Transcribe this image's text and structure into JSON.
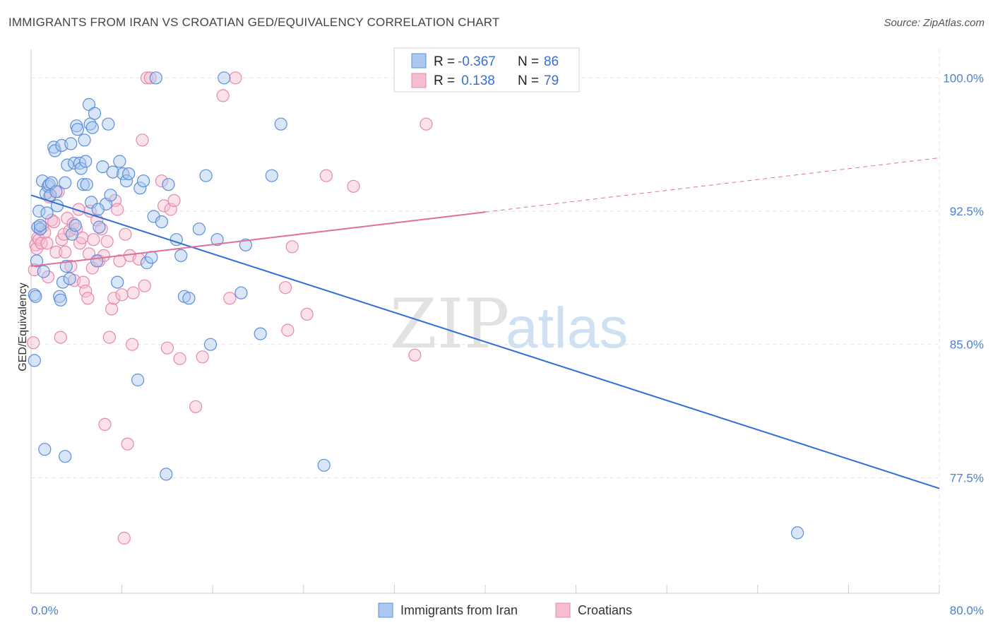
{
  "title": "IMMIGRANTS FROM IRAN VS CROATIAN GED/EQUIVALENCY CORRELATION CHART",
  "source": "Source: ZipAtlas.com",
  "watermark": {
    "part1": "ZIP",
    "part2": "atlas"
  },
  "legend": {
    "rows": [
      {
        "r_label": "R = ",
        "r_value": "-0.367",
        "n_label": "N = ",
        "n_value": "86"
      },
      {
        "r_label": "R = ",
        "r_value": " 0.138",
        "n_label": "N = ",
        "n_value": "79"
      }
    ]
  },
  "colors": {
    "blue_fill": "#aac8f0",
    "blue_stroke": "#5b8fd8",
    "blue_line": "#2f6fd6",
    "pink_fill": "#f6bcd0",
    "pink_stroke": "#e58aaa",
    "pink_line": "#e0709a",
    "grid": "#e3e3e3",
    "tick_text": "#4a7fd4"
  },
  "chart_data": {
    "type": "scatter",
    "title": "IMMIGRANTS FROM IRAN VS CROATIAN GED/EQUIVALENCY CORRELATION CHART",
    "xlabel": "",
    "ylabel": "GED/Equivalency",
    "xlim": [
      0,
      80
    ],
    "ylim": [
      71.0,
      101.6
    ],
    "x_tick_labels": [
      {
        "value": 0,
        "label": "0.0%"
      },
      {
        "value": 80,
        "label": "80.0%"
      }
    ],
    "x_minor_ticks": [
      8,
      16,
      24,
      32,
      40,
      48,
      56,
      64,
      72,
      80
    ],
    "y_ticks": [
      {
        "value": 100.0,
        "label": "100.0%"
      },
      {
        "value": 92.5,
        "label": "92.5%"
      },
      {
        "value": 85.0,
        "label": "85.0%"
      },
      {
        "value": 77.5,
        "label": "77.5%"
      }
    ],
    "grid": true,
    "legend_position": "top-center",
    "series": [
      {
        "name": "Immigrants from Iran",
        "R": -0.367,
        "N": 86,
        "trend": {
          "x0": 0,
          "y0": 93.4,
          "x1": 80,
          "y1": 76.9,
          "dashed_from": null
        },
        "points": [
          [
            0.3,
            87.8
          ],
          [
            0.3,
            84.1
          ],
          [
            0.5,
            89.7
          ],
          [
            0.6,
            91.6
          ],
          [
            0.7,
            92.5
          ],
          [
            0.8,
            91.5
          ],
          [
            1.0,
            94.2
          ],
          [
            1.1,
            89.1
          ],
          [
            1.3,
            93.5
          ],
          [
            1.4,
            92.4
          ],
          [
            1.5,
            93.9
          ],
          [
            1.6,
            94.0
          ],
          [
            1.7,
            93.4
          ],
          [
            1.8,
            94.1
          ],
          [
            2.0,
            96.1
          ],
          [
            2.1,
            95.9
          ],
          [
            2.2,
            93.6
          ],
          [
            2.3,
            92.8
          ],
          [
            2.5,
            87.7
          ],
          [
            2.7,
            96.2
          ],
          [
            2.8,
            88.5
          ],
          [
            3.0,
            94.1
          ],
          [
            3.1,
            89.4
          ],
          [
            3.2,
            95.1
          ],
          [
            3.4,
            88.7
          ],
          [
            3.5,
            96.3
          ],
          [
            3.6,
            91.2
          ],
          [
            3.8,
            95.2
          ],
          [
            3.9,
            91.7
          ],
          [
            4.0,
            97.3
          ],
          [
            4.1,
            97.1
          ],
          [
            4.3,
            95.2
          ],
          [
            4.4,
            94.9
          ],
          [
            4.6,
            94.0
          ],
          [
            4.7,
            96.5
          ],
          [
            4.8,
            95.3
          ],
          [
            4.9,
            94.0
          ],
          [
            5.1,
            98.5
          ],
          [
            5.2,
            97.4
          ],
          [
            5.3,
            93.0
          ],
          [
            5.4,
            97.2
          ],
          [
            5.6,
            98.0
          ],
          [
            5.8,
            89.7
          ],
          [
            6.0,
            91.6
          ],
          [
            6.3,
            95.0
          ],
          [
            6.6,
            92.9
          ],
          [
            6.8,
            97.4
          ],
          [
            7.0,
            93.4
          ],
          [
            7.2,
            94.7
          ],
          [
            7.6,
            88.5
          ],
          [
            7.8,
            95.3
          ],
          [
            8.1,
            94.6
          ],
          [
            8.4,
            94.2
          ],
          [
            8.6,
            94.6
          ],
          [
            9.4,
            83.0
          ],
          [
            9.6,
            93.8
          ],
          [
            9.9,
            94.2
          ],
          [
            10.2,
            89.6
          ],
          [
            10.6,
            89.9
          ],
          [
            10.8,
            92.2
          ],
          [
            11.0,
            100.0
          ],
          [
            11.5,
            91.9
          ],
          [
            11.9,
            77.7
          ],
          [
            12.1,
            94.0
          ],
          [
            12.8,
            90.9
          ],
          [
            13.2,
            90.0
          ],
          [
            13.5,
            87.7
          ],
          [
            13.9,
            87.6
          ],
          [
            14.8,
            91.5
          ],
          [
            15.4,
            94.5
          ],
          [
            15.8,
            85.0
          ],
          [
            16.4,
            90.9
          ],
          [
            17.0,
            100.0
          ],
          [
            18.5,
            87.9
          ],
          [
            18.9,
            90.6
          ],
          [
            20.2,
            85.6
          ],
          [
            21.2,
            94.5
          ],
          [
            22.0,
            97.4
          ],
          [
            25.8,
            78.2
          ],
          [
            67.5,
            74.4
          ],
          [
            1.2,
            79.1
          ],
          [
            3.0,
            78.7
          ],
          [
            0.8,
            91.7
          ],
          [
            2.6,
            87.5
          ],
          [
            5.9,
            92.6
          ],
          [
            0.4,
            87.7
          ]
        ]
      },
      {
        "name": "Croatians",
        "R": 0.138,
        "N": 79,
        "trend": {
          "x0": 0,
          "y0": 89.4,
          "x1": 80,
          "y1": 95.5,
          "dashed_from": 40
        },
        "points": [
          [
            0.2,
            85.1
          ],
          [
            0.3,
            89.2
          ],
          [
            0.4,
            90.6
          ],
          [
            0.5,
            90.4
          ],
          [
            0.6,
            91.0
          ],
          [
            0.7,
            90.9
          ],
          [
            0.9,
            90.7
          ],
          [
            1.0,
            91.6
          ],
          [
            1.2,
            91.3
          ],
          [
            1.4,
            90.7
          ],
          [
            1.5,
            88.8
          ],
          [
            1.6,
            93.3
          ],
          [
            1.8,
            92.0
          ],
          [
            2.0,
            91.9
          ],
          [
            2.2,
            90.2
          ],
          [
            2.4,
            93.6
          ],
          [
            2.6,
            85.4
          ],
          [
            2.7,
            90.9
          ],
          [
            2.9,
            91.2
          ],
          [
            3.0,
            90.2
          ],
          [
            3.2,
            92.1
          ],
          [
            3.4,
            91.4
          ],
          [
            3.5,
            89.4
          ],
          [
            3.7,
            91.8
          ],
          [
            3.8,
            88.6
          ],
          [
            4.0,
            91.5
          ],
          [
            4.2,
            92.6
          ],
          [
            4.3,
            90.7
          ],
          [
            4.5,
            91.0
          ],
          [
            4.6,
            88.5
          ],
          [
            4.8,
            88.0
          ],
          [
            5.0,
            87.6
          ],
          [
            5.1,
            90.1
          ],
          [
            5.2,
            92.5
          ],
          [
            5.4,
            89.3
          ],
          [
            5.5,
            90.9
          ],
          [
            5.8,
            92.0
          ],
          [
            6.0,
            89.7
          ],
          [
            6.2,
            91.5
          ],
          [
            6.4,
            90.0
          ],
          [
            6.5,
            80.5
          ],
          [
            6.7,
            90.8
          ],
          [
            6.9,
            85.4
          ],
          [
            7.1,
            87.0
          ],
          [
            7.3,
            87.6
          ],
          [
            7.4,
            93.1
          ],
          [
            7.6,
            92.6
          ],
          [
            7.8,
            89.7
          ],
          [
            8.0,
            87.8
          ],
          [
            8.2,
            74.1
          ],
          [
            8.3,
            91.2
          ],
          [
            8.5,
            79.4
          ],
          [
            8.7,
            90.0
          ],
          [
            8.9,
            85.0
          ],
          [
            9.0,
            87.9
          ],
          [
            9.5,
            89.8
          ],
          [
            9.8,
            96.5
          ],
          [
            10.0,
            88.3
          ],
          [
            10.2,
            100.0
          ],
          [
            10.5,
            100.0
          ],
          [
            11.5,
            94.2
          ],
          [
            11.7,
            92.8
          ],
          [
            12.0,
            84.8
          ],
          [
            12.3,
            92.6
          ],
          [
            12.6,
            93.1
          ],
          [
            13.1,
            84.2
          ],
          [
            14.5,
            81.5
          ],
          [
            15.1,
            84.3
          ],
          [
            16.9,
            99.0
          ],
          [
            17.5,
            87.6
          ],
          [
            18.0,
            100.0
          ],
          [
            22.4,
            88.2
          ],
          [
            22.6,
            85.8
          ],
          [
            23.0,
            90.5
          ],
          [
            24.3,
            86.7
          ],
          [
            26.0,
            94.5
          ],
          [
            28.4,
            93.9
          ],
          [
            33.8,
            84.4
          ],
          [
            34.8,
            97.4
          ]
        ]
      }
    ]
  },
  "bottom_legend": [
    {
      "label": "Immigrants from Iran",
      "color_key": "blue"
    },
    {
      "label": "Croatians",
      "color_key": "pink"
    }
  ]
}
